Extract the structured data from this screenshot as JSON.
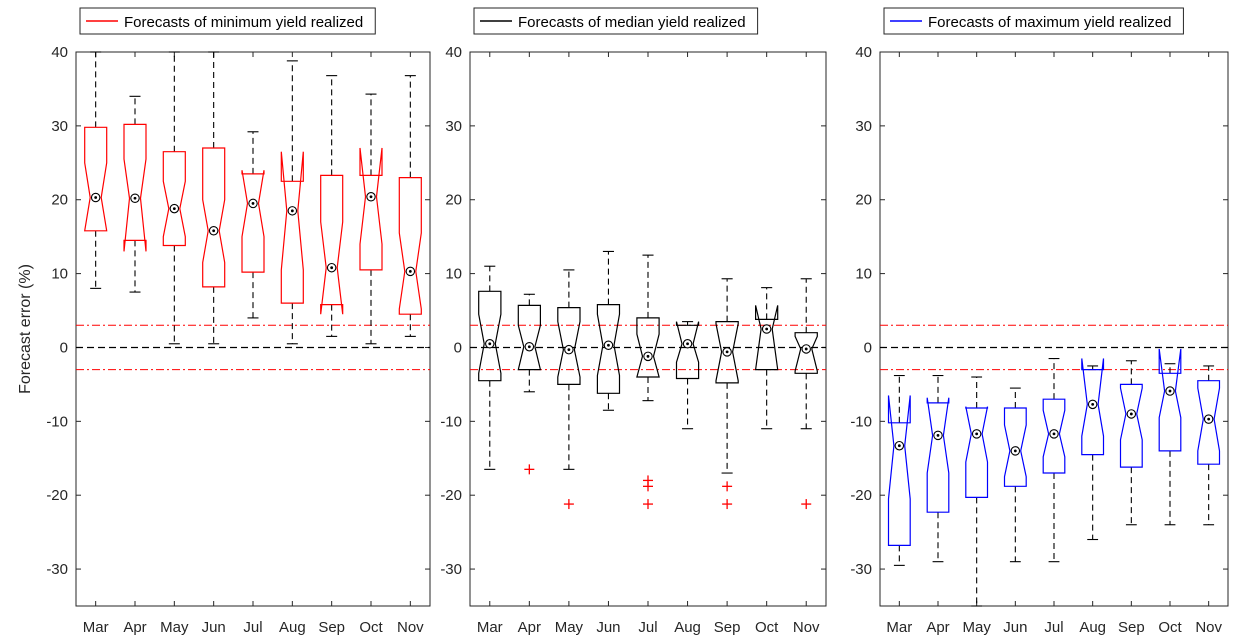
{
  "chart_data": [
    {
      "type": "box",
      "legend": "Forecasts of minimum yield realized",
      "color": "#ff0000",
      "ylabel": "Forecast error (%)",
      "ylim": [
        -35,
        40
      ],
      "yticks": [
        "-30",
        "-20",
        "-10",
        "0",
        "10",
        "20",
        "30",
        "40"
      ],
      "categories": [
        "Mar",
        "Apr",
        "May",
        "Jun",
        "Jul",
        "Aug",
        "Sep",
        "Oct",
        "Nov"
      ],
      "reference_lines": {
        "zero": 0,
        "band": [
          -3,
          3
        ]
      },
      "boxes": [
        {
          "month": "Mar",
          "lower_whisker": 8,
          "q1": 15.8,
          "notch_low": 15.8,
          "median": 20.3,
          "notch_high": 25,
          "q3": 29.8,
          "upper_whisker": 40,
          "outliers": []
        },
        {
          "month": "Apr",
          "lower_whisker": 7.5,
          "q1": 14.5,
          "notch_low": 13,
          "median": 20.2,
          "notch_high": 25.5,
          "q3": 30.2,
          "upper_whisker": 34,
          "outliers": []
        },
        {
          "month": "May",
          "lower_whisker": 0.5,
          "q1": 13.8,
          "notch_low": 15,
          "median": 18.8,
          "notch_high": 22.5,
          "q3": 26.5,
          "upper_whisker": 40,
          "outliers": []
        },
        {
          "month": "Jun",
          "lower_whisker": 0.5,
          "q1": 8.2,
          "notch_low": 11.5,
          "median": 15.8,
          "notch_high": 20,
          "q3": 27,
          "upper_whisker": 40,
          "outliers": []
        },
        {
          "month": "Jul",
          "lower_whisker": 4,
          "q1": 10.2,
          "notch_low": 15,
          "median": 19.5,
          "notch_high": 24,
          "q3": 23.5,
          "upper_whisker": 29.2,
          "outliers": []
        },
        {
          "month": "Aug",
          "lower_whisker": 0.5,
          "q1": 6,
          "notch_low": 10.5,
          "median": 18.5,
          "notch_high": 26.5,
          "q3": 22.5,
          "upper_whisker": 38.8,
          "outliers": []
        },
        {
          "month": "Sep",
          "lower_whisker": 1.5,
          "q1": 5.8,
          "notch_low": 4.5,
          "median": 10.8,
          "notch_high": 17,
          "q3": 23.3,
          "upper_whisker": 36.8,
          "outliers": []
        },
        {
          "month": "Oct",
          "lower_whisker": 0.5,
          "q1": 10.5,
          "notch_low": 14,
          "median": 20.4,
          "notch_high": 27,
          "q3": 23.3,
          "upper_whisker": 34.3,
          "outliers": []
        },
        {
          "month": "Nov",
          "lower_whisker": 1.5,
          "q1": 4.5,
          "notch_low": 5.2,
          "median": 10.3,
          "notch_high": 15.5,
          "q3": 23,
          "upper_whisker": 36.8,
          "outliers": []
        }
      ]
    },
    {
      "type": "box",
      "legend": "Forecasts of median yield realized",
      "color": "#000000",
      "ylabel": "",
      "ylim": [
        -35,
        40
      ],
      "yticks": [
        "-30",
        "-20",
        "-10",
        "0",
        "10",
        "20",
        "30",
        "40"
      ],
      "categories": [
        "Mar",
        "Apr",
        "May",
        "Jun",
        "Jul",
        "Aug",
        "Sep",
        "Oct",
        "Nov"
      ],
      "reference_lines": {
        "zero": 0,
        "band": [
          -3,
          3
        ]
      },
      "boxes": [
        {
          "month": "Mar",
          "lower_whisker": -16.5,
          "q1": -4.5,
          "notch_low": -3.5,
          "median": 0.5,
          "notch_high": 4.5,
          "q3": 7.6,
          "upper_whisker": 11,
          "outliers": []
        },
        {
          "month": "Apr",
          "lower_whisker": -6,
          "q1": -3,
          "notch_low": -3,
          "median": 0.1,
          "notch_high": 3,
          "q3": 5.7,
          "upper_whisker": 7.2,
          "outliers": [
            -16.5
          ]
        },
        {
          "month": "May",
          "lower_whisker": -16.5,
          "q1": -5,
          "notch_low": -4,
          "median": -0.3,
          "notch_high": 3.5,
          "q3": 5.4,
          "upper_whisker": 10.5,
          "outliers": [
            -21.2
          ]
        },
        {
          "month": "Jun",
          "lower_whisker": -8.5,
          "q1": -6.2,
          "notch_low": -3.8,
          "median": 0.3,
          "notch_high": 4.5,
          "q3": 5.8,
          "upper_whisker": 13,
          "outliers": []
        },
        {
          "month": "Jul",
          "lower_whisker": -7.2,
          "q1": -4,
          "notch_low": -4,
          "median": -1.2,
          "notch_high": 1.8,
          "q3": 4,
          "upper_whisker": 12.5,
          "outliers": [
            -18,
            -18.8,
            -21.2
          ]
        },
        {
          "month": "Aug",
          "lower_whisker": -11,
          "q1": -4.2,
          "notch_low": -2,
          "median": 0.5,
          "notch_high": 3.5,
          "q3": 3,
          "upper_whisker": 3.5,
          "outliers": []
        },
        {
          "month": "Sep",
          "lower_whisker": -17,
          "q1": -4.8,
          "notch_low": -4.5,
          "median": -0.6,
          "notch_high": 3.2,
          "q3": 3.5,
          "upper_whisker": 9.3,
          "outliers": [
            -18.8,
            -21.2
          ]
        },
        {
          "month": "Oct",
          "lower_whisker": -11,
          "q1": -3,
          "notch_low": -3,
          "median": 2.5,
          "notch_high": 5.7,
          "q3": 3.8,
          "upper_whisker": 8.1,
          "outliers": []
        },
        {
          "month": "Nov",
          "lower_whisker": -11,
          "q1": -3.5,
          "notch_low": -3.2,
          "median": -0.2,
          "notch_high": 1.5,
          "q3": 2,
          "upper_whisker": 9.3,
          "outliers": [
            -21.2
          ]
        }
      ]
    },
    {
      "type": "box",
      "legend": "Forecasts of maximum yield realized",
      "color": "#0000ff",
      "ylabel": "",
      "ylim": [
        -35,
        40
      ],
      "yticks": [
        "-30",
        "-20",
        "-10",
        "0",
        "10",
        "20",
        "30",
        "40"
      ],
      "categories": [
        "Mar",
        "Apr",
        "May",
        "Jun",
        "Jul",
        "Aug",
        "Sep",
        "Oct",
        "Nov"
      ],
      "reference_lines": {
        "zero": 0,
        "band": [
          -3,
          3
        ]
      },
      "boxes": [
        {
          "month": "Mar",
          "lower_whisker": -29.5,
          "q1": -26.8,
          "notch_low": -20.5,
          "median": -13.3,
          "notch_high": -6.5,
          "q3": -10.2,
          "upper_whisker": -3.8,
          "outliers": []
        },
        {
          "month": "Apr",
          "lower_whisker": -29,
          "q1": -22.3,
          "notch_low": -17,
          "median": -11.9,
          "notch_high": -6.8,
          "q3": -7.5,
          "upper_whisker": -3.8,
          "outliers": []
        },
        {
          "month": "May",
          "lower_whisker": -35,
          "q1": -20.3,
          "notch_low": -15.5,
          "median": -11.7,
          "notch_high": -8,
          "q3": -8.2,
          "upper_whisker": -4,
          "outliers": []
        },
        {
          "month": "Jun",
          "lower_whisker": -29,
          "q1": -18.8,
          "notch_low": -17.5,
          "median": -14,
          "notch_high": -10.5,
          "q3": -8.2,
          "upper_whisker": -5.5,
          "outliers": []
        },
        {
          "month": "Jul",
          "lower_whisker": -29,
          "q1": -17,
          "notch_low": -14.8,
          "median": -11.7,
          "notch_high": -8.5,
          "q3": -7,
          "upper_whisker": -1.5,
          "outliers": []
        },
        {
          "month": "Aug",
          "lower_whisker": -26,
          "q1": -14.5,
          "notch_low": -12,
          "median": -7.7,
          "notch_high": -1.5,
          "q3": -3,
          "upper_whisker": -2.5,
          "outliers": []
        },
        {
          "month": "Sep",
          "lower_whisker": -24,
          "q1": -16.2,
          "notch_low": -12.5,
          "median": -9,
          "notch_high": -5.5,
          "q3": -5,
          "upper_whisker": -1.8,
          "outliers": []
        },
        {
          "month": "Oct",
          "lower_whisker": -24,
          "q1": -14,
          "notch_low": -9.5,
          "median": -5.9,
          "notch_high": -0.2,
          "q3": -3.5,
          "upper_whisker": -2.2,
          "outliers": []
        },
        {
          "month": "Nov",
          "lower_whisker": -24,
          "q1": -15.8,
          "notch_low": -14,
          "median": -9.7,
          "notch_high": -5.5,
          "q3": -4.5,
          "upper_whisker": -2.5,
          "outliers": []
        }
      ]
    }
  ]
}
